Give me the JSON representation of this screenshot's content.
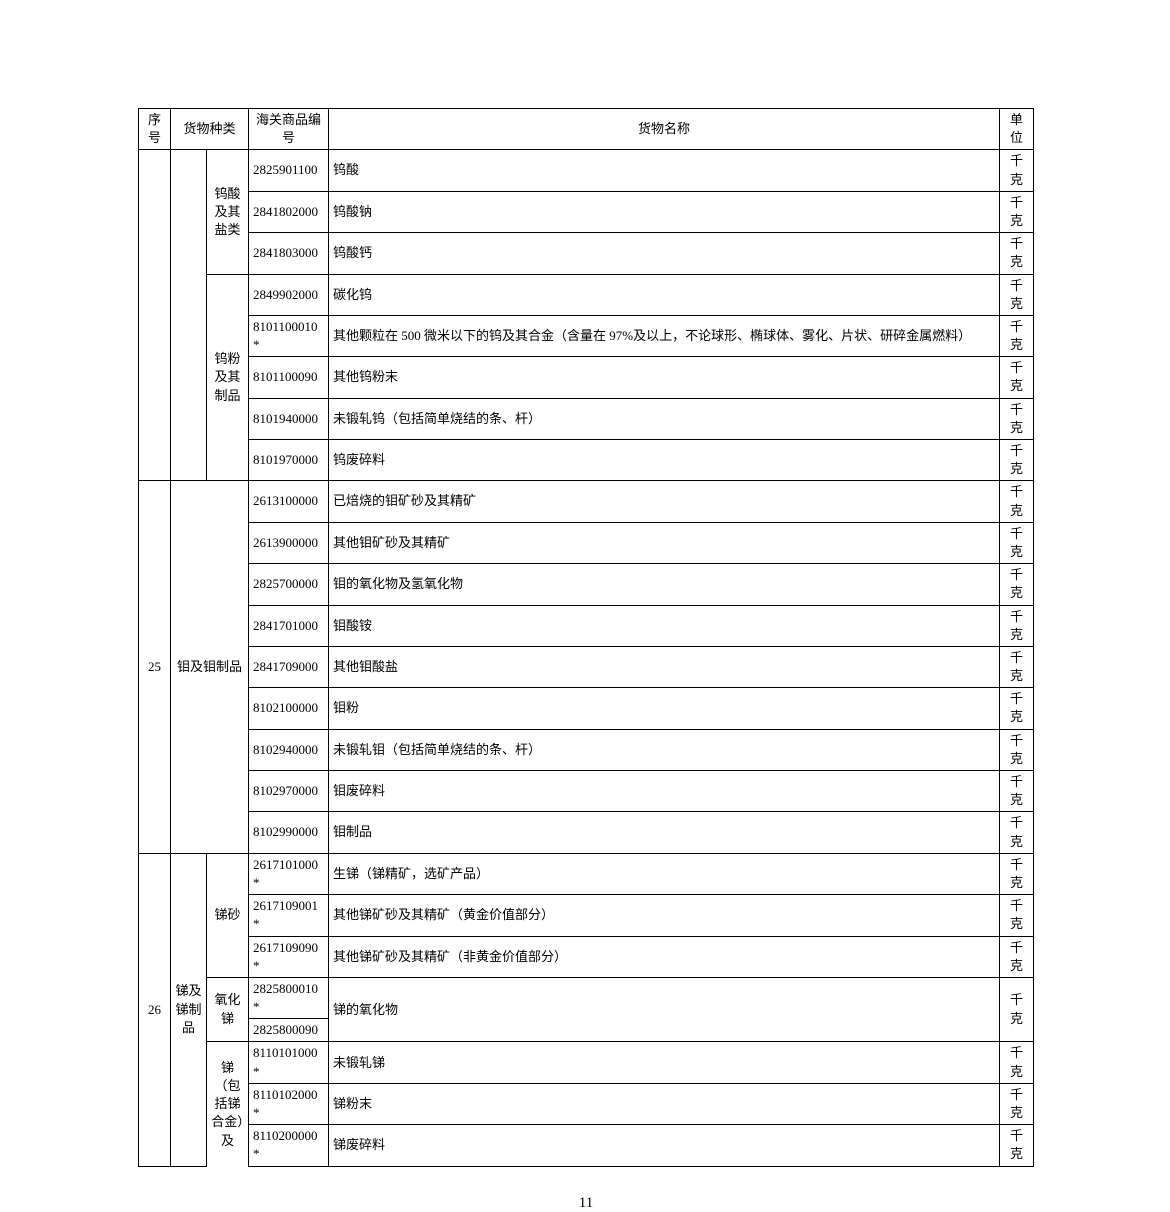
{
  "header": {
    "seq": "序号",
    "category": "货物种类",
    "code": "海关商品编号",
    "name": "货物名称",
    "unit": "单位"
  },
  "groups": [
    {
      "seq": "",
      "cat1": "",
      "subs": [
        {
          "label": "钨酸及其盐类",
          "rows": [
            {
              "code": "2825901100",
              "name": "钨酸",
              "unit": "千克"
            },
            {
              "code": "2841802000",
              "name": "钨酸钠",
              "unit": "千克"
            },
            {
              "code": "2841803000",
              "name": "钨酸钙",
              "unit": "千克"
            }
          ]
        },
        {
          "label": "钨粉及其制品",
          "rows": [
            {
              "code": "2849902000",
              "name": "碳化钨",
              "unit": "千克"
            },
            {
              "code": "8101100010*",
              "name": "其他颗粒在 500 微米以下的钨及其合金（含量在 97%及以上，不论球形、椭球体、雾化、片状、研碎金属燃料）",
              "unit": "千克"
            },
            {
              "code": "8101100090",
              "name": "其他钨粉末",
              "unit": "千克"
            },
            {
              "code": "8101940000",
              "name": "未锻轧钨（包括简单烧结的条、杆）",
              "unit": "千克"
            },
            {
              "code": "8101970000",
              "name": "钨废碎料",
              "unit": "千克"
            }
          ]
        }
      ]
    },
    {
      "seq": "25",
      "cat1": "钼及钼制品",
      "subs": [
        {
          "label": "",
          "rows": [
            {
              "code": "2613100000",
              "name": "已焙烧的钼矿砂及其精矿",
              "unit": "千克"
            },
            {
              "code": "2613900000",
              "name": "其他钼矿砂及其精矿",
              "unit": "千克"
            },
            {
              "code": "2825700000",
              "name": "钼的氧化物及氢氧化物",
              "unit": "千克"
            },
            {
              "code": "2841701000",
              "name": "钼酸铵",
              "unit": "千克"
            },
            {
              "code": "2841709000",
              "name": "其他钼酸盐",
              "unit": "千克"
            },
            {
              "code": "8102100000",
              "name": "钼粉",
              "unit": "千克"
            },
            {
              "code": "8102940000",
              "name": "未锻轧钼（包括简单烧结的条、杆）",
              "unit": "千克"
            },
            {
              "code": "8102970000",
              "name": "钼废碎料",
              "unit": "千克"
            },
            {
              "code": "8102990000",
              "name": "钼制品",
              "unit": "千克"
            }
          ]
        }
      ]
    },
    {
      "seq": "26",
      "cat1": "锑及锑制品",
      "subs": [
        {
          "label": "锑砂",
          "rows": [
            {
              "code": "2617101000*",
              "name": "生锑（锑精矿，选矿产品）",
              "unit": "千克"
            },
            {
              "code": "2617109001*",
              "name": "其他锑矿砂及其精矿（黄金价值部分）",
              "unit": "千克"
            },
            {
              "code": "2617109090*",
              "name": "其他锑矿砂及其精矿（非黄金价值部分）",
              "unit": "千克"
            }
          ]
        },
        {
          "label": "氧化锑",
          "merged": {
            "name": "锑的氧化物",
            "unit": "千克"
          },
          "rows": [
            {
              "code": "2825800010*"
            },
            {
              "code": "2825800090"
            }
          ]
        },
        {
          "label": "锑（包括锑合金）及",
          "open": true,
          "rows": [
            {
              "code": "8110101000*",
              "name": "未锻轧锑",
              "unit": "千克"
            },
            {
              "code": "8110102000*",
              "name": "锑粉末",
              "unit": "千克"
            },
            {
              "code": "8110200000*",
              "name": "锑废碎料",
              "unit": "千克"
            }
          ]
        }
      ]
    }
  ],
  "pageNumber": "11"
}
